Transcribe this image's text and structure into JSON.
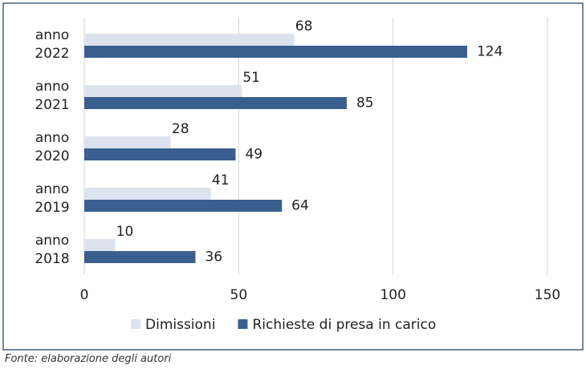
{
  "chart_data": {
    "type": "bar",
    "orientation": "horizontal",
    "categories": [
      "anno 2022",
      "anno 2021",
      "anno 2020",
      "anno 2019",
      "anno 2018"
    ],
    "series": [
      {
        "name": "Dimissioni",
        "color": "#dce3ef",
        "values": [
          68,
          51,
          28,
          41,
          10
        ]
      },
      {
        "name": "Richieste di presa in carico",
        "color": "#3a5f8f",
        "values": [
          124,
          85,
          49,
          64,
          36
        ]
      }
    ],
    "xlim": [
      0,
      150
    ],
    "xticks": [
      0,
      50,
      100,
      150
    ],
    "grid": true,
    "legend": "bottom",
    "source": "Fonte: elaborazione degli autori"
  }
}
